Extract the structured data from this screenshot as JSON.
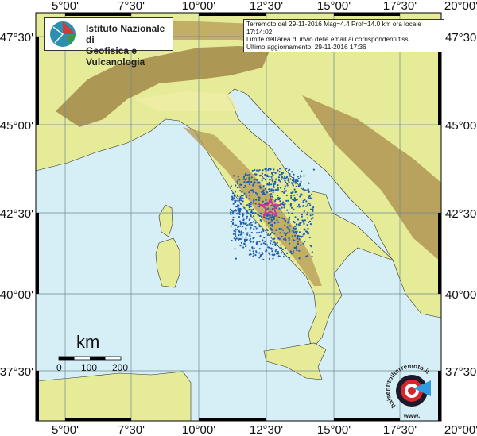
{
  "logo": {
    "line1": "Istituto Nazionale di",
    "line2": "Geofisica e Vulcanologia"
  },
  "info": {
    "line1": "Terremoto del 29-11-2016 Mag=4.4 Prof=14.0 km ora locale 17:14:02",
    "line2": "Limite dell'area di invio delle email ai corrispondenti fissi.",
    "line3": "Ultimo aggiornamento: 29-11-2016 17:36"
  },
  "longitude_labels": [
    "5°00'",
    "7°30'",
    "10°00'",
    "12°30'",
    "15°00'",
    "17°30'",
    "20°00'"
  ],
  "latitude_labels": [
    "47°30'",
    "45°00'",
    "42°30'",
    "40°00'",
    "37°30'"
  ],
  "scale": {
    "unit": "km",
    "labels": [
      "0",
      "100",
      "200"
    ]
  },
  "badge": {
    "text": "haisentitoilterremoto.it",
    "url_text": "www."
  },
  "colors": {
    "sea": "#d6eef6",
    "lowland": "#e6eb98",
    "mountain": "#9a7b3e",
    "events": "#1f5fb0",
    "epicenter": "#d0309a"
  }
}
